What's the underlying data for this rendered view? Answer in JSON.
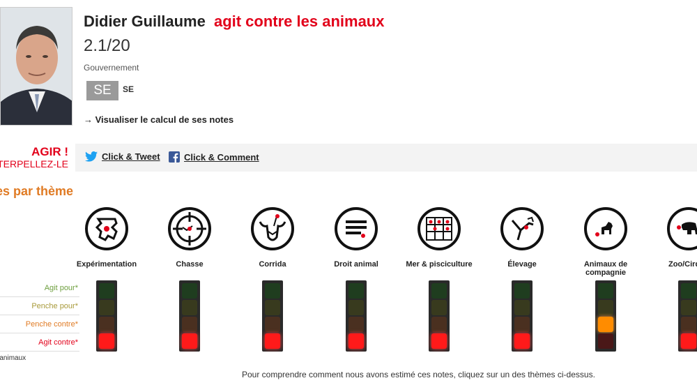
{
  "deputy": {
    "name": "Didier Guillaume",
    "verdict": "agit contre les animaux",
    "score": "2.1/20",
    "group": "Gouvernement",
    "party_box": "SE",
    "party_code": "SE",
    "calc_link": "→ Visualiser le calcul de ses notes"
  },
  "agir": {
    "title": "AGIR !",
    "subtitle": "INTERPELLEZ-LE",
    "tweet_label": "Click & Tweet",
    "comment_label": "Click & Comment"
  },
  "themes_heading": "Notes par thème",
  "row_labels": [
    "Agit pour*",
    "Penche pour*",
    "Penche contre*",
    "Agit contre*"
  ],
  "legend_note": "*Pour les animaux",
  "themes": [
    {
      "label": "Expérimentation",
      "icon": "lab-rat-icon",
      "level": "Agit contre*"
    },
    {
      "label": "Chasse",
      "icon": "crosshair-icon",
      "level": "Agit contre*"
    },
    {
      "label": "Corrida",
      "icon": "bull-icon",
      "level": "Agit contre*"
    },
    {
      "label": "Droit animal",
      "icon": "law-document-icon",
      "level": "Agit contre*"
    },
    {
      "label": "Mer & pisciculture",
      "icon": "fishing-net-icon",
      "level": "Agit contre*"
    },
    {
      "label": "Élevage",
      "icon": "farm-animal-icon",
      "level": "Agit contre*"
    },
    {
      "label": "Animaux de compagnie",
      "icon": "dog-icon",
      "level": "Penche contre*"
    },
    {
      "label": "Zoo/Cirque",
      "icon": "elephant-icon",
      "level": "Agit contre*"
    }
  ],
  "footer_note": "Pour comprendre comment nous avons estimé ces notes, cliquez sur un des thèmes ci-dessus.",
  "colors": {
    "accent_red": "#e2001a",
    "heading_orange": "#e07b24",
    "lamp_on_red": "#ff1a1a",
    "lamp_on_orange": "#ff8c00",
    "lamp_off_green": "#1f3d1f",
    "lamp_off_olive": "#383a1e",
    "lamp_off_brown": "#4a3020",
    "lamp_off_darkred": "#4a1818"
  }
}
